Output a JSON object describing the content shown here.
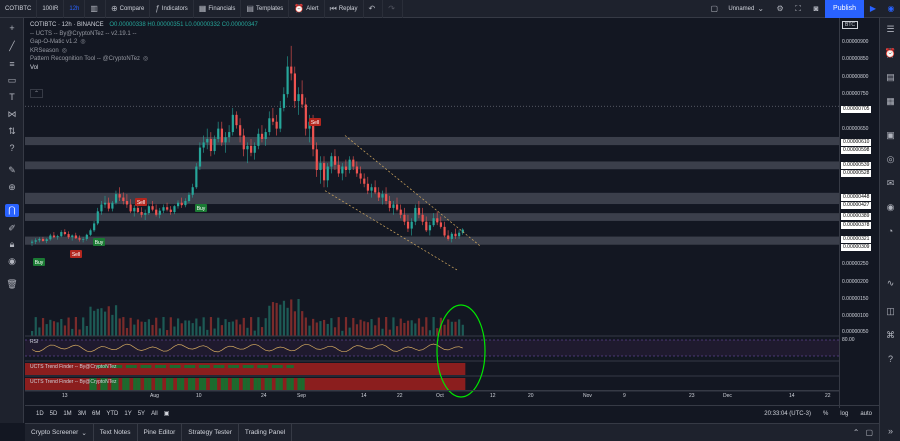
{
  "toolbar": {
    "symbol": "COTIBTC",
    "interval_input": "100IR",
    "interval": "12h",
    "compare_label": "Compare",
    "indicators_label": "Indicators",
    "financials_label": "Financials",
    "templates_label": "Templates",
    "alert_label": "Alert",
    "replay_label": "Replay",
    "layout_label": "Unnamed",
    "publish_label": "Publish"
  },
  "legend": {
    "symbol_line": "COTIBTC · 12h · BINANCE",
    "ohlc": "O0.00000338  H0.00000351  L0.00000332  C0.00000347",
    "indicators": [
      "-- UCTS -- By@CryptoNTez -- v2.19.1 --",
      "Gap-O-Matic v1.2",
      "KRSeason",
      "Pattern Recognition Tool -- @CryptoNTez",
      "Vol"
    ],
    "collapse_icon": "chevron-up"
  },
  "candles": [
    [
      309,
      318,
      300,
      312
    ],
    [
      312,
      322,
      305,
      316
    ],
    [
      316,
      325,
      310,
      320
    ],
    [
      320,
      326,
      312,
      314
    ],
    [
      314,
      322,
      308,
      319
    ],
    [
      319,
      335,
      315,
      330
    ],
    [
      330,
      340,
      322,
      325
    ],
    [
      325,
      332,
      318,
      328
    ],
    [
      328,
      345,
      325,
      340
    ],
    [
      340,
      348,
      330,
      334
    ],
    [
      334,
      342,
      320,
      325
    ],
    [
      325,
      333,
      315,
      330
    ],
    [
      330,
      338,
      320,
      322
    ],
    [
      322,
      330,
      312,
      318
    ],
    [
      318,
      326,
      310,
      320
    ],
    [
      320,
      335,
      315,
      332
    ],
    [
      332,
      350,
      328,
      345
    ],
    [
      345,
      372,
      340,
      365
    ],
    [
      365,
      410,
      360,
      400
    ],
    [
      400,
      430,
      390,
      420
    ],
    [
      420,
      445,
      410,
      425
    ],
    [
      425,
      440,
      400,
      408
    ],
    [
      408,
      430,
      400,
      425
    ],
    [
      425,
      460,
      420,
      450
    ],
    [
      450,
      470,
      430,
      440
    ],
    [
      440,
      455,
      420,
      430
    ],
    [
      430,
      450,
      410,
      420
    ],
    [
      420,
      435,
      395,
      400
    ],
    [
      400,
      418,
      385,
      410
    ],
    [
      410,
      425,
      395,
      398
    ],
    [
      398,
      412,
      382,
      390
    ],
    [
      390,
      405,
      375,
      395
    ],
    [
      395,
      420,
      390,
      415
    ],
    [
      415,
      430,
      400,
      405
    ],
    [
      405,
      420,
      385,
      390
    ],
    [
      390,
      410,
      380,
      402
    ],
    [
      402,
      420,
      395,
      412
    ],
    [
      412,
      425,
      400,
      405
    ],
    [
      405,
      415,
      390,
      398
    ],
    [
      398,
      418,
      392,
      415
    ],
    [
      415,
      432,
      408,
      425
    ],
    [
      425,
      440,
      410,
      418
    ],
    [
      418,
      438,
      412,
      430
    ],
    [
      430,
      455,
      425,
      448
    ],
    [
      448,
      480,
      440,
      470
    ],
    [
      470,
      540,
      465,
      530
    ],
    [
      530,
      600,
      520,
      585
    ],
    [
      585,
      620,
      570,
      600
    ],
    [
      600,
      640,
      580,
      610
    ],
    [
      610,
      630,
      560,
      575
    ],
    [
      575,
      620,
      565,
      610
    ],
    [
      610,
      660,
      600,
      640
    ],
    [
      640,
      660,
      590,
      600
    ],
    [
      600,
      630,
      570,
      615
    ],
    [
      615,
      650,
      600,
      630
    ],
    [
      630,
      700,
      620,
      680
    ],
    [
      680,
      690,
      640,
      650
    ],
    [
      650,
      670,
      600,
      620
    ],
    [
      620,
      640,
      560,
      580
    ],
    [
      580,
      600,
      540,
      590
    ],
    [
      590,
      610,
      560,
      570
    ],
    [
      570,
      600,
      550,
      590
    ],
    [
      590,
      640,
      580,
      625
    ],
    [
      625,
      650,
      600,
      610
    ],
    [
      610,
      640,
      590,
      630
    ],
    [
      630,
      690,
      620,
      670
    ],
    [
      670,
      700,
      650,
      660
    ],
    [
      660,
      680,
      620,
      640
    ],
    [
      640,
      720,
      630,
      700
    ],
    [
      700,
      760,
      690,
      740
    ],
    [
      740,
      850,
      730,
      820
    ],
    [
      820,
      880,
      780,
      800
    ],
    [
      800,
      820,
      700,
      720
    ],
    [
      720,
      760,
      680,
      740
    ],
    [
      740,
      780,
      700,
      710
    ],
    [
      710,
      730,
      620,
      640
    ],
    [
      640,
      680,
      600,
      660
    ],
    [
      660,
      680,
      560,
      580
    ],
    [
      580,
      600,
      500,
      520
    ],
    [
      520,
      560,
      480,
      540
    ],
    [
      540,
      560,
      470,
      490
    ],
    [
      490,
      540,
      470,
      530
    ],
    [
      530,
      570,
      510,
      560
    ],
    [
      560,
      580,
      520,
      535
    ],
    [
      535,
      560,
      500,
      510
    ],
    [
      510,
      540,
      490,
      530
    ],
    [
      530,
      550,
      500,
      520
    ],
    [
      520,
      560,
      510,
      550
    ],
    [
      550,
      560,
      520,
      530
    ],
    [
      530,
      545,
      500,
      510
    ],
    [
      510,
      530,
      480,
      495
    ],
    [
      495,
      510,
      470,
      480
    ],
    [
      480,
      500,
      450,
      460
    ],
    [
      460,
      480,
      440,
      470
    ],
    [
      470,
      490,
      450,
      455
    ],
    [
      455,
      470,
      430,
      440
    ],
    [
      440,
      460,
      420,
      450
    ],
    [
      450,
      470,
      420,
      430
    ],
    [
      430,
      445,
      400,
      410
    ],
    [
      410,
      430,
      390,
      420
    ],
    [
      420,
      440,
      400,
      405
    ],
    [
      405,
      420,
      380,
      390
    ],
    [
      390,
      410,
      360,
      370
    ],
    [
      370,
      390,
      340,
      350
    ],
    [
      350,
      380,
      330,
      370
    ],
    [
      370,
      420,
      360,
      410
    ],
    [
      410,
      430,
      380,
      390
    ],
    [
      390,
      410,
      360,
      370
    ],
    [
      370,
      385,
      340,
      345
    ],
    [
      345,
      370,
      330,
      360
    ],
    [
      360,
      395,
      355,
      380
    ],
    [
      380,
      400,
      360,
      368
    ],
    [
      368,
      385,
      350,
      355
    ],
    [
      355,
      370,
      325,
      330
    ],
    [
      330,
      345,
      315,
      320
    ],
    [
      320,
      340,
      310,
      335
    ],
    [
      335,
      350,
      320,
      328
    ],
    [
      328,
      345,
      320,
      338
    ],
    [
      338,
      351,
      332,
      347
    ]
  ],
  "price_axis": {
    "badge": "BTC",
    "ticks": [
      "0.00000900",
      "0.00000850",
      "0.00000800",
      "0.00000750",
      "0.00000650",
      "0.00000250",
      "0.00000200",
      "0.00000150",
      "0.00000100",
      "0.00000050"
    ],
    "levels": [
      "0.00000705",
      "0.00000610",
      "0.00000598",
      "0.00000539",
      "0.00000528",
      "0.00000448",
      "0.00000427",
      "0.00000389",
      "0.00000378",
      "0.00000321",
      "0.00000309"
    ]
  },
  "time_axis": {
    "ticks": [
      "13",
      "Aug",
      "10",
      "24",
      "Sep",
      "14",
      "22",
      "Oct",
      "12",
      "20",
      "Nov",
      "9",
      "23",
      "Dec",
      "14",
      "22"
    ]
  },
  "signals": [
    {
      "label": "Sell",
      "kind": "sell"
    },
    {
      "label": "Buy",
      "kind": "buy"
    },
    {
      "label": "Sell",
      "kind": "sell"
    },
    {
      "label": "Buy",
      "kind": "buy"
    },
    {
      "label": "Sell",
      "kind": "sell"
    },
    {
      "label": "Buy",
      "kind": "buy"
    }
  ],
  "panes": {
    "rsi_label": "RSI",
    "rsi_value": "80.00",
    "trend_finder_1": "UCTS Trend Finder -- By@CryptoNTez",
    "trend_finder_2": "UCTS Trend Finder -- By@CryptoNTez"
  },
  "range_bar": {
    "ranges": [
      "1D",
      "5D",
      "1M",
      "3M",
      "6M",
      "YTD",
      "1Y",
      "5Y",
      "All"
    ],
    "clock": "20:33:04 (UTC-3)",
    "percent": "%",
    "log": "log",
    "auto": "auto"
  },
  "bottom_tabs": [
    "Crypto Screener",
    "Text Notes",
    "Pine Editor",
    "Strategy Tester",
    "Trading Panel"
  ],
  "colors": {
    "up": "#26a69a",
    "down": "#ef5350",
    "background": "#131722",
    "accent": "#2962ff",
    "highlight_circle": "#00e600",
    "rsi": "#d4aa60",
    "rsi_band": "#7e57c2"
  }
}
